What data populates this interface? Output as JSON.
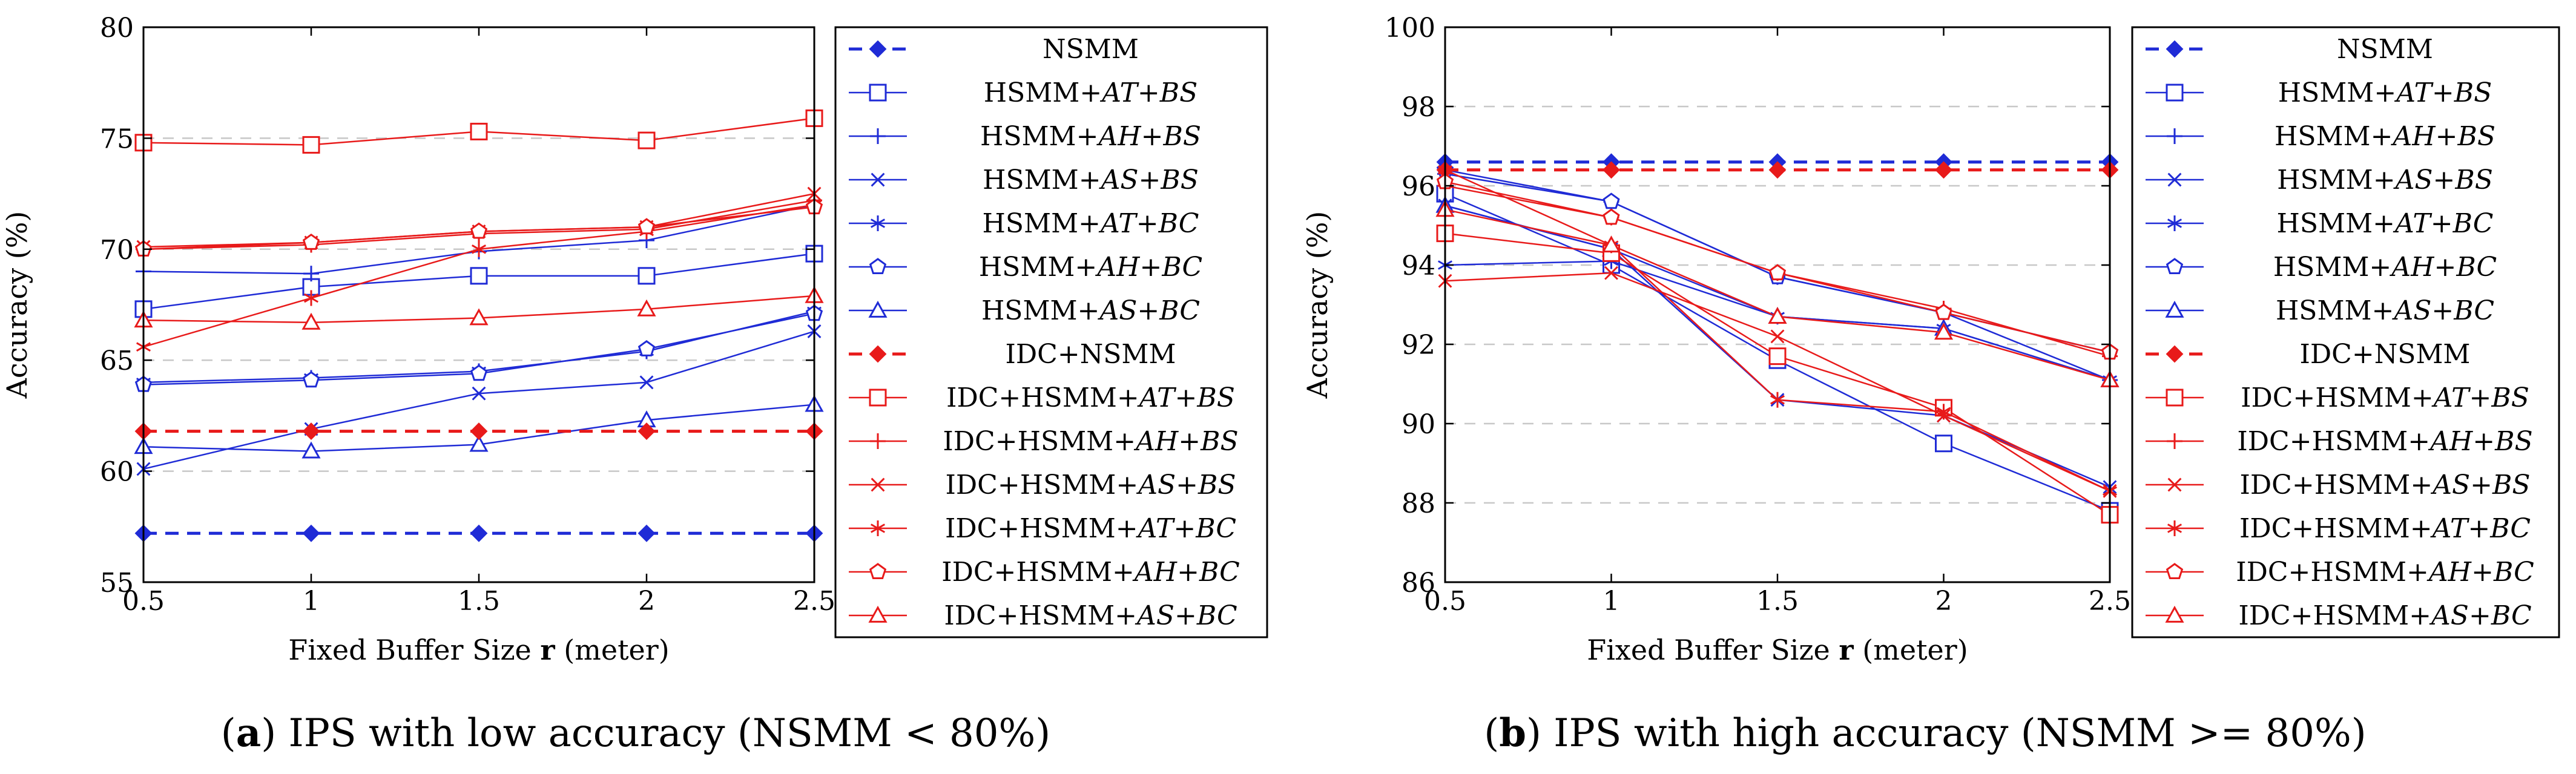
{
  "series_names": [
    "NSMM",
    "HSMM+AT+BS",
    "HSMM+AH+BS",
    "HSMM+AS+BS",
    "HSMM+AT+BC",
    "HSMM+AH+BC",
    "HSMM+AS+BC",
    "IDC+NSMM",
    "IDC+HSMM+AT+BS",
    "IDC+HSMM+AH+BS",
    "IDC+HSMM+AS+BS",
    "IDC+HSMM+AT+BC",
    "IDC+HSMM+AH+BC",
    "IDC+HSMM+AS+BC"
  ],
  "colors": {
    "blue": "#1f2bd6",
    "red": "#e81a1a",
    "grid": "#c8c8c8",
    "axis": "#000000"
  },
  "chart_data": [
    {
      "type": "line",
      "panel": "a",
      "caption_letter": "(a)",
      "caption_text": "IPS with low accuracy (NSMM < 80%)",
      "xlabel": "Fixed Buffer Size r (meter)",
      "ylabel": "Accuracy (%)",
      "x": [
        0.5,
        1,
        1.5,
        2,
        2.5
      ],
      "x_ticks": [
        "0.5",
        "1",
        "1.5",
        "2",
        "2.5"
      ],
      "xlim": [
        0.5,
        2.5
      ],
      "ylim": [
        55,
        80
      ],
      "y_ticks": [
        55,
        60,
        65,
        70,
        75,
        80
      ],
      "grid": "horizontal dashed",
      "legend_placement": "right",
      "series": [
        {
          "name": "NSMM",
          "color": "blue",
          "marker": "diamond",
          "dashed": true,
          "values": [
            57.2,
            57.2,
            57.2,
            57.2,
            57.2
          ]
        },
        {
          "name": "HSMM+AT+BS",
          "color": "blue",
          "marker": "square",
          "dashed": false,
          "values": [
            67.3,
            68.3,
            68.8,
            68.8,
            69.8
          ]
        },
        {
          "name": "HSMM+AH+BS",
          "color": "blue",
          "marker": "plus",
          "dashed": false,
          "values": [
            69.0,
            68.9,
            69.9,
            70.4,
            72.0
          ]
        },
        {
          "name": "HSMM+AS+BS",
          "color": "blue",
          "marker": "x",
          "dashed": false,
          "values": [
            60.1,
            61.9,
            63.5,
            64.0,
            66.3
          ]
        },
        {
          "name": "HSMM+AT+BC",
          "color": "blue",
          "marker": "star",
          "dashed": false,
          "values": [
            64.0,
            64.2,
            64.5,
            65.4,
            67.2
          ]
        },
        {
          "name": "HSMM+AH+BC",
          "color": "blue",
          "marker": "pentagon",
          "dashed": false,
          "values": [
            63.9,
            64.1,
            64.4,
            65.5,
            67.1
          ]
        },
        {
          "name": "HSMM+AS+BC",
          "color": "blue",
          "marker": "triangle",
          "dashed": false,
          "values": [
            61.1,
            60.9,
            61.2,
            62.3,
            63.0
          ]
        },
        {
          "name": "IDC+NSMM",
          "color": "red",
          "marker": "diamond",
          "dashed": true,
          "values": [
            61.8,
            61.8,
            61.8,
            61.8,
            61.8
          ]
        },
        {
          "name": "IDC+HSMM+AT+BS",
          "color": "red",
          "marker": "square",
          "dashed": false,
          "values": [
            74.8,
            74.7,
            75.3,
            74.9,
            75.9
          ]
        },
        {
          "name": "IDC+HSMM+AH+BS",
          "color": "red",
          "marker": "plus",
          "dashed": false,
          "values": [
            70.0,
            70.2,
            70.7,
            70.9,
            72.2
          ]
        },
        {
          "name": "IDC+HSMM+AS+BS",
          "color": "red",
          "marker": "x",
          "dashed": false,
          "values": [
            70.1,
            70.3,
            70.8,
            71.0,
            72.5
          ]
        },
        {
          "name": "IDC+HSMM+AT+BC",
          "color": "red",
          "marker": "star",
          "dashed": false,
          "values": [
            65.6,
            67.8,
            70.0,
            70.8,
            72.0
          ]
        },
        {
          "name": "IDC+HSMM+AH+BC",
          "color": "red",
          "marker": "pentagon",
          "dashed": false,
          "values": [
            70.0,
            70.3,
            70.8,
            71.0,
            71.9
          ]
        },
        {
          "name": "IDC+HSMM+AS+BC",
          "color": "red",
          "marker": "triangle",
          "dashed": false,
          "values": [
            66.8,
            66.7,
            66.9,
            67.3,
            67.9
          ]
        }
      ]
    },
    {
      "type": "line",
      "panel": "b",
      "caption_letter": "(b)",
      "caption_text": "IPS with high accuracy (NSMM >= 80%)",
      "xlabel": "Fixed Buffer Size r (meter)",
      "ylabel": "Accuracy (%)",
      "x": [
        0.5,
        1,
        1.5,
        2,
        2.5
      ],
      "x_ticks": [
        "0.5",
        "1",
        "1.5",
        "2",
        "2.5"
      ],
      "xlim": [
        0.5,
        2.5
      ],
      "ylim": [
        86,
        100
      ],
      "y_ticks": [
        86,
        88,
        90,
        92,
        94,
        96,
        98,
        100
      ],
      "grid": "horizontal dashed",
      "legend_placement": "right",
      "series": [
        {
          "name": "NSMM",
          "color": "blue",
          "marker": "diamond",
          "dashed": true,
          "values": [
            96.6,
            96.6,
            96.6,
            96.6,
            96.6
          ]
        },
        {
          "name": "HSMM+AT+BS",
          "color": "blue",
          "marker": "square",
          "dashed": false,
          "values": [
            95.8,
            94.0,
            91.6,
            89.5,
            87.8
          ]
        },
        {
          "name": "HSMM+AH+BS",
          "color": "blue",
          "marker": "plus",
          "dashed": false,
          "values": [
            96.3,
            95.6,
            93.7,
            92.8,
            91.1
          ]
        },
        {
          "name": "HSMM+AS+BS",
          "color": "blue",
          "marker": "x",
          "dashed": false,
          "values": [
            95.5,
            94.4,
            90.6,
            90.2,
            88.4
          ]
        },
        {
          "name": "HSMM+AT+BC",
          "color": "blue",
          "marker": "star",
          "dashed": false,
          "values": [
            94.0,
            94.1,
            92.7,
            92.4,
            91.1
          ]
        },
        {
          "name": "HSMM+AH+BC",
          "color": "blue",
          "marker": "pentagon",
          "dashed": false,
          "values": [
            96.4,
            95.6,
            93.7,
            92.8,
            91.8
          ]
        },
        {
          "name": "HSMM+AS+BC",
          "color": "blue",
          "marker": "triangle",
          "dashed": false,
          "values": [
            95.5,
            94.4,
            92.7,
            92.4,
            91.1
          ]
        },
        {
          "name": "IDC+NSMM",
          "color": "red",
          "marker": "diamond",
          "dashed": true,
          "values": [
            96.4,
            96.4,
            96.4,
            96.4,
            96.4
          ]
        },
        {
          "name": "IDC+HSMM+AT+BS",
          "color": "red",
          "marker": "square",
          "dashed": false,
          "values": [
            94.8,
            94.3,
            91.7,
            90.4,
            87.7
          ]
        },
        {
          "name": "IDC+HSMM+AH+BS",
          "color": "red",
          "marker": "plus",
          "dashed": false,
          "values": [
            96.0,
            95.2,
            93.8,
            92.9,
            91.7
          ]
        },
        {
          "name": "IDC+HSMM+AS+BS",
          "color": "red",
          "marker": "x",
          "dashed": false,
          "values": [
            93.6,
            93.8,
            92.2,
            90.2,
            88.3
          ]
        },
        {
          "name": "IDC+HSMM+AT+BC",
          "color": "red",
          "marker": "star",
          "dashed": false,
          "values": [
            96.4,
            94.5,
            90.6,
            90.3,
            88.3
          ]
        },
        {
          "name": "IDC+HSMM+AH+BC",
          "color": "red",
          "marker": "pentagon",
          "dashed": false,
          "values": [
            96.1,
            95.2,
            93.8,
            92.8,
            91.8
          ]
        },
        {
          "name": "IDC+HSMM+AS+BC",
          "color": "red",
          "marker": "triangle",
          "dashed": false,
          "values": [
            95.4,
            94.5,
            92.7,
            92.3,
            91.1
          ]
        }
      ]
    }
  ]
}
